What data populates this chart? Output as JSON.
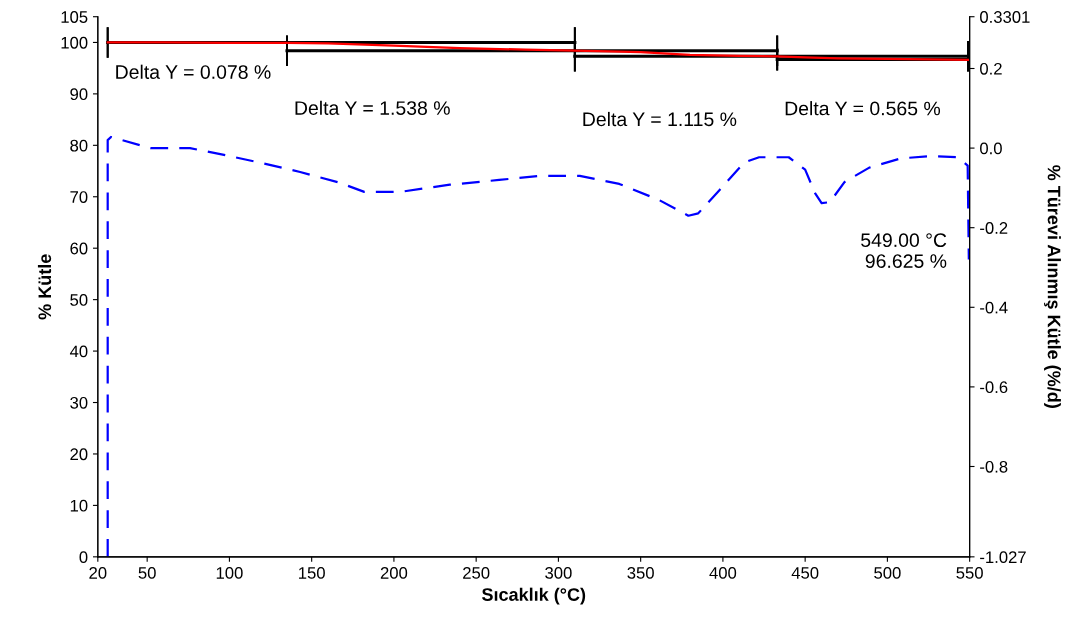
{
  "chart_data": {
    "type": "line",
    "xlabel": "Sıcaklık (°C)",
    "ylabel": "% Kütle",
    "y2label": "% Türevi Alınmış Kütle (%/d)",
    "xlim": [
      20,
      550
    ],
    "xticks": [
      20,
      50,
      100,
      150,
      200,
      250,
      300,
      350,
      400,
      450,
      500,
      550
    ],
    "ylim": [
      0,
      105
    ],
    "yticks": [
      0,
      10,
      20,
      30,
      40,
      50,
      60,
      70,
      80,
      90,
      100,
      105
    ],
    "y2lim": [
      -1.027,
      0.3301
    ],
    "y2ticks": [
      -1.027,
      -0.8,
      -0.6,
      -0.4,
      -0.2,
      {
        "value": 0,
        "label": "0.0"
      },
      0.2,
      0.3301
    ],
    "grid": false,
    "legend": false,
    "series": [
      {
        "color": "#ff0000",
        "line_style": "solid",
        "x": [
          26,
          60,
          100,
          135,
          160,
          200,
          240,
          280,
          310,
          350,
          380,
          410,
          433,
          450,
          470,
          500,
          549
        ],
        "values": [
          100,
          100,
          99.9,
          99.9,
          99.8,
          99.4,
          98.9,
          98.6,
          98.4,
          98.1,
          97.6,
          97.4,
          97.3,
          97.1,
          96.9,
          96.8,
          96.6
        ]
      },
      {
        "color": "#000000",
        "line_style": "solid",
        "x": [
          26,
          310
        ],
        "values": [
          100,
          100
        ]
      },
      {
        "color": "#000000",
        "line_style": "solid",
        "x": [
          135,
          433
        ],
        "values": [
          98.4,
          98.4
        ]
      },
      {
        "color": "#000000",
        "line_style": "solid",
        "x": [
          310,
          549
        ],
        "values": [
          97.3,
          97.3
        ]
      },
      {
        "color": "#000000",
        "line_style": "solid",
        "x": [
          433,
          549
        ],
        "values": [
          96.7,
          96.7
        ]
      },
      {
        "color": "#0000ff",
        "axis": "y2",
        "line_style": "dashed",
        "x": [
          26,
          26,
          28,
          52,
          76,
          100,
          118,
          143,
          167,
          182,
          204,
          234,
          264,
          288,
          313,
          337,
          361,
          379,
          385,
          398,
          413,
          422,
          440,
          450,
          456,
          460,
          465,
          474,
          489,
          508,
          526,
          543,
          548.8,
          549.5
        ],
        "values": [
          -1.027,
          0.02,
          0.028,
          0.0,
          0.0,
          -0.02,
          -0.036,
          -0.06,
          -0.087,
          -0.11,
          -0.11,
          -0.092,
          -0.08,
          -0.07,
          -0.07,
          -0.09,
          -0.13,
          -0.17,
          -0.164,
          -0.105,
          -0.036,
          -0.023,
          -0.023,
          -0.054,
          -0.113,
          -0.138,
          -0.136,
          -0.085,
          -0.049,
          -0.026,
          -0.02,
          -0.023,
          -0.044,
          -0.28
        ]
      }
    ],
    "annotations": [
      "Delta Y = 0.078 %",
      "Delta Y = 1.538 %",
      "Delta Y = 1.115 %",
      "Delta Y = 0.565 %",
      "549.00 °C\n96.625 %"
    ]
  }
}
